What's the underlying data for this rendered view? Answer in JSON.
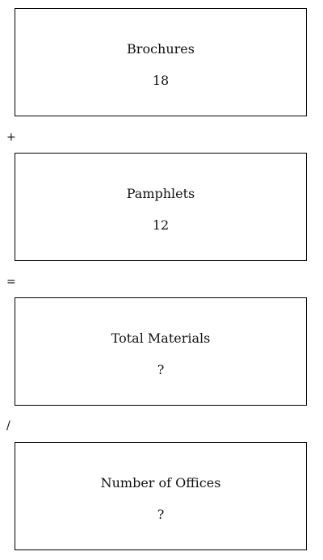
{
  "boxes": [
    {
      "label": "Brochures",
      "value": "18"
    },
    {
      "label": "Pamphlets",
      "value": "12"
    },
    {
      "label": "Total Materials",
      "value": "?"
    },
    {
      "label": "Number of Offices",
      "value": "?"
    }
  ],
  "operators": [
    "+",
    "=",
    "/"
  ]
}
